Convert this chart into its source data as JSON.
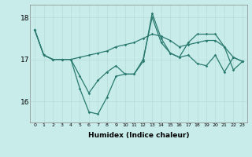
{
  "xlabel": "Humidex (Indice chaleur)",
  "ylabel": "",
  "background_color": "#c8ecea",
  "grid_color": "#b8dcd8",
  "line_color": "#2a7a70",
  "xlim": [
    -0.5,
    23.5
  ],
  "ylim": [
    15.5,
    18.3
  ],
  "yticks": [
    16,
    17,
    18
  ],
  "xticks": [
    0,
    1,
    2,
    3,
    4,
    5,
    6,
    7,
    8,
    9,
    10,
    11,
    12,
    13,
    14,
    15,
    16,
    17,
    18,
    19,
    20,
    21,
    22,
    23
  ],
  "series": [
    [
      17.7,
      17.1,
      17.0,
      17.0,
      17.0,
      17.05,
      17.1,
      17.15,
      17.2,
      17.3,
      17.35,
      17.4,
      17.5,
      17.6,
      17.55,
      17.45,
      17.3,
      17.35,
      17.4,
      17.45,
      17.45,
      17.3,
      17.05,
      16.95
    ],
    [
      17.7,
      17.1,
      17.0,
      17.0,
      17.0,
      16.6,
      16.2,
      16.5,
      16.7,
      16.85,
      16.65,
      16.65,
      17.0,
      18.0,
      17.4,
      17.15,
      17.05,
      17.1,
      16.9,
      16.85,
      17.1,
      16.7,
      17.05,
      16.95
    ],
    [
      17.7,
      17.1,
      17.0,
      17.0,
      17.0,
      16.3,
      15.75,
      15.7,
      16.1,
      16.6,
      16.65,
      16.65,
      16.95,
      18.1,
      17.5,
      17.15,
      17.05,
      17.4,
      17.6,
      17.6,
      17.6,
      17.3,
      16.75,
      16.95
    ]
  ]
}
